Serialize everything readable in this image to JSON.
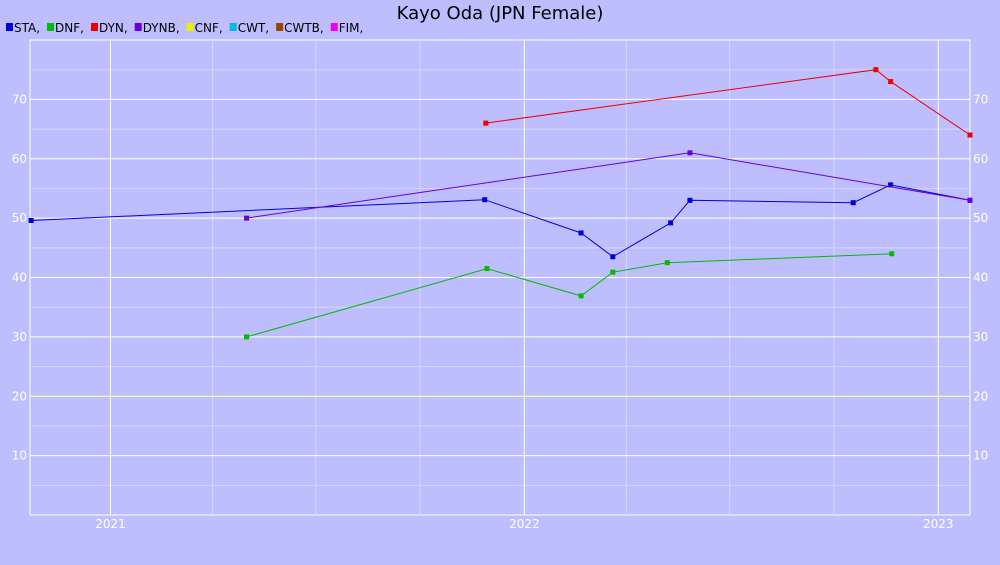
{
  "chart_data": {
    "type": "line",
    "title": "Kayo Oda (JPN Female)",
    "xlabel": "",
    "ylabel": "",
    "x_axis": {
      "type": "date",
      "range": [
        "2020-10-22",
        "2023-01-29"
      ],
      "ticks": [
        {
          "date": "2021-01-01",
          "label": "2021"
        },
        {
          "date": "2022-01-01",
          "label": "2022"
        },
        {
          "date": "2023-01-01",
          "label": "2023"
        }
      ],
      "minor_grid_dates": [
        "2021-04-01",
        "2021-07-01",
        "2021-10-01",
        "2022-04-01",
        "2022-07-01",
        "2022-10-01"
      ]
    },
    "y_axis": {
      "range": [
        0,
        80
      ],
      "ticks": [
        10,
        20,
        30,
        40,
        50,
        60,
        70
      ],
      "minor_ticks": [
        5,
        15,
        25,
        35,
        45,
        55,
        65,
        75
      ],
      "labels_both_sides": true
    },
    "grid": true,
    "legend_position": "top-left",
    "legend": [
      {
        "label": "STA,",
        "color": "#0000dd"
      },
      {
        "label": "DNF,",
        "color": "#00bb00"
      },
      {
        "label": "DYN,",
        "color": "#ee0000"
      },
      {
        "label": "DYNB,",
        "color": "#6600dd"
      },
      {
        "label": "CNF,",
        "color": "#eeee00"
      },
      {
        "label": "CWT,",
        "color": "#00bbdd"
      },
      {
        "label": "CWTB,",
        "color": "#994400"
      },
      {
        "label": "FIM,",
        "color": "#ee00ee"
      }
    ],
    "series": [
      {
        "color": "#0000dd",
        "points": [
          {
            "x": "2020-10-23",
            "y": 49.6
          },
          {
            "x": "2021-11-27",
            "y": 53.1
          },
          {
            "x": "2022-02-20",
            "y": 47.5
          },
          {
            "x": "2022-03-20",
            "y": 43.5
          },
          {
            "x": "2022-05-10",
            "y": 49.2
          },
          {
            "x": "2022-05-27",
            "y": 53.0
          },
          {
            "x": "2022-10-18",
            "y": 52.6
          },
          {
            "x": "2022-11-20",
            "y": 55.6
          },
          {
            "x": "2023-01-29",
            "y": 53.0
          }
        ]
      },
      {
        "color": "#00bb00",
        "points": [
          {
            "x": "2021-05-01",
            "y": 30.0
          },
          {
            "x": "2021-11-29",
            "y": 41.5
          },
          {
            "x": "2022-02-20",
            "y": 36.9
          },
          {
            "x": "2022-03-20",
            "y": 40.9
          },
          {
            "x": "2022-05-07",
            "y": 42.5
          },
          {
            "x": "2022-11-21",
            "y": 44.0
          }
        ]
      },
      {
        "color": "#ee0000",
        "points": [
          {
            "x": "2021-11-28",
            "y": 66.0
          },
          {
            "x": "2022-11-07",
            "y": 75.0
          },
          {
            "x": "2022-11-20",
            "y": 73.0
          },
          {
            "x": "2023-01-29",
            "y": 64.0
          }
        ]
      },
      {
        "color": "#6600dd",
        "points": [
          {
            "x": "2021-05-01",
            "y": 50.0
          },
          {
            "x": "2022-05-27",
            "y": 61.0
          },
          {
            "x": "2023-01-29",
            "y": 53.0
          }
        ]
      }
    ]
  }
}
